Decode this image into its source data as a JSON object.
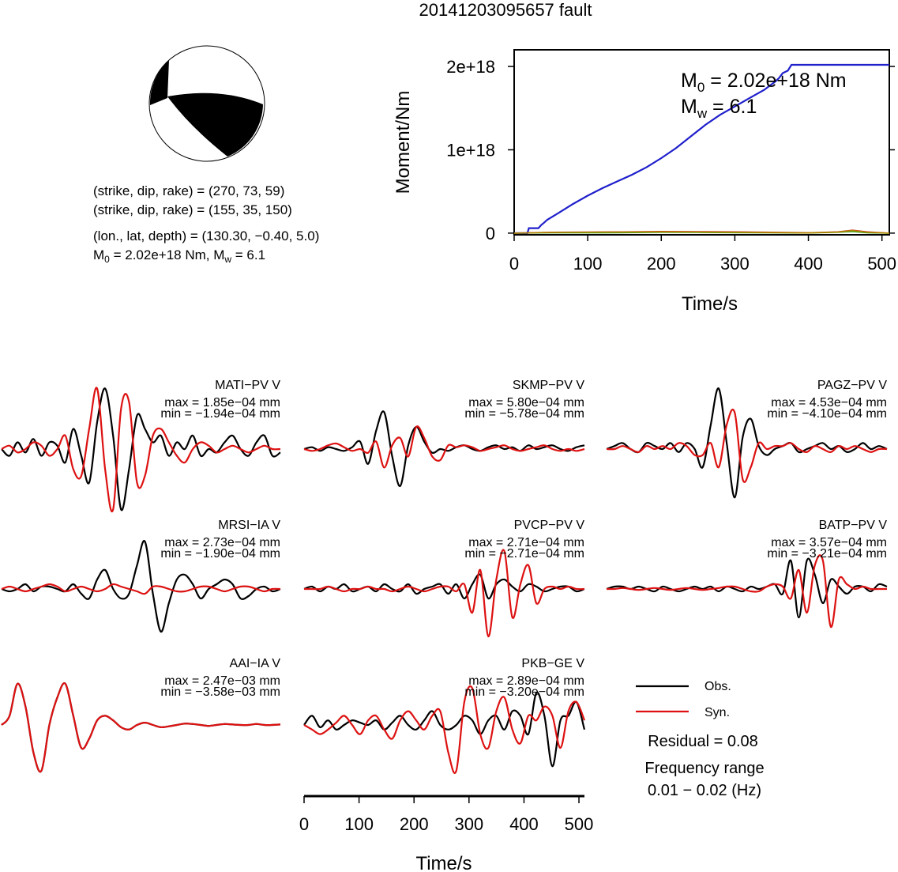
{
  "title": "20141203095657 fault",
  "mechanism": {
    "plane1": "(strike, dip, rake) = (270, 73, 59)",
    "plane2": "(strike, dip, rake) = (155, 35, 150)",
    "location": "(lon., lat, depth) = (130.30, −0.40, 5.0)",
    "moment_prefix": "M",
    "moment_sub": "0",
    "moment_value": " = 2.02e+18 Nm, M",
    "mw_sub": "w",
    "mw_value": " = 6.1"
  },
  "chart_data": [
    {
      "type": "line",
      "title": "",
      "xlabel": "Time/s",
      "ylabel": "Moment/Nm",
      "xlim": [
        0,
        510
      ],
      "ylim": [
        -2e+16,
        2.2e+18
      ],
      "xticks": [
        "0",
        "100",
        "200",
        "300",
        "400",
        "500"
      ],
      "yticks": [
        "0",
        "1e+18",
        "2e+18"
      ],
      "annotation": {
        "m0_prefix": "M",
        "m0_sub": "0",
        "m0_value": " = 2.02e+18 Nm",
        "mw_prefix": "M",
        "mw_sub": "w",
        "mw_value": " = 6.1"
      },
      "series": [
        {
          "color": "#1f1fcc",
          "x": [
            0,
            18,
            20,
            33,
            37,
            40,
            45,
            60,
            80,
            100,
            120,
            140,
            160,
            180,
            200,
            220,
            240,
            260,
            280,
            300,
            320,
            340,
            355,
            360,
            365,
            372,
            377,
            380,
            400,
            450,
            510
          ],
          "y": [
            0,
            0,
            6e+16,
            6e+16,
            1e+17,
            1.2e+17,
            1.6e+17,
            2.4e+17,
            3.5e+17,
            4.5e+17,
            5.4e+17,
            6.2e+17,
            7e+17,
            7.9e+17,
            9e+17,
            1.02e+18,
            1.16e+18,
            1.3e+18,
            1.42e+18,
            1.52e+18,
            1.62e+18,
            1.72e+18,
            1.82e+18,
            1.86e+18,
            1.92e+18,
            1.95e+18,
            2.02e+18,
            2.02e+18,
            2.02e+18,
            2.02e+18,
            2.02e+18
          ]
        },
        {
          "color": "#22a022",
          "x": [
            0,
            50,
            100,
            150,
            200,
            250,
            300,
            350,
            400,
            440,
            460,
            480,
            510
          ],
          "y": [
            0,
            5000000000000000.0,
            4000000000000000.0,
            6000000000000000.0,
            1e+16,
            8000000000000000.0,
            6000000000000000.0,
            4000000000000000.0,
            2000000000000000.0,
            1e+16,
            2e+16,
            5000000000000000.0,
            0
          ]
        },
        {
          "color": "#cc2222",
          "x": [
            0,
            50,
            100,
            150,
            200,
            250,
            300,
            350,
            400,
            440,
            460,
            480,
            510
          ],
          "y": [
            0,
            1e+16,
            1.2e+16,
            1.5e+16,
            2e+16,
            1.8e+16,
            1.5e+16,
            1e+16,
            5000000000000000.0,
            1.5e+16,
            3.5e+16,
            1.5e+16,
            0
          ]
        },
        {
          "color": "#b08a00",
          "x": [
            0,
            50,
            100,
            150,
            200,
            250,
            300,
            350,
            400,
            440,
            460,
            480,
            510
          ],
          "y": [
            0,
            8000000000000000.0,
            1e+16,
            1.2e+16,
            1.5e+16,
            1.3e+16,
            1e+16,
            7000000000000000.0,
            3000000000000000.0,
            1.2e+16,
            3e+16,
            1e+16,
            0
          ]
        }
      ]
    },
    {
      "type": "line",
      "title": "",
      "xlabel": "Time/s",
      "xlim": [
        0,
        510
      ],
      "xticks": [
        "0",
        "100",
        "200",
        "300",
        "400",
        "500"
      ],
      "legend": {
        "obs": "Obs.",
        "syn": "Syn."
      },
      "residual": "Residual = 0.08",
      "freq_label": "Frequency range",
      "freq_value": "0.01 − 0.02 (Hz)",
      "traces": [
        {
          "station": "MATI−PV V",
          "max": "max = 1.85e−04 mm",
          "min": "min = −1.94e−04 mm",
          "obs": [
            0,
            -0.1,
            0.1,
            -0.05,
            0.15,
            -0.1,
            0.1,
            0.05,
            -0.2,
            0.3,
            -0.1,
            -0.5,
            0.4,
            0.9,
            0.2,
            -0.9,
            -0.3,
            0.5,
            0.3,
            0.1,
            0.2,
            -0.1,
            0.1,
            0,
            0.2,
            -0.1,
            0,
            -0.05,
            0.1,
            0.2,
            0,
            -0.1,
            0.1,
            0.2,
            -0.1,
            -0.05
          ],
          "syn": [
            0,
            0.05,
            -0.05,
            0,
            0.1,
            0.05,
            -0.1,
            0,
            0.2,
            -0.3,
            -0.4,
            0.3,
            0.9,
            -0.3,
            -0.9,
            0.6,
            0.7,
            -0.5,
            -0.4,
            0.2,
            0.3,
            0.1,
            -0.1,
            -0.2,
            0,
            0.1,
            0.05,
            -0.05,
            0,
            0.05,
            0,
            -0.05,
            0,
            0.05,
            0,
            0
          ]
        },
        {
          "station": "SKMP−PV V",
          "max": "max = 5.80e−04 mm",
          "min": "min = −5.78e−04 mm",
          "obs": [
            0,
            0.05,
            -0.05,
            0.05,
            0,
            -0.05,
            0.05,
            0.2,
            -0.4,
            0.5,
            1.0,
            -0.2,
            -1.0,
            0.1,
            0.6,
            0.2,
            -0.1,
            0,
            -0.05,
            0.05,
            0.1,
            0,
            -0.05,
            0.05,
            0.1,
            0,
            0.05,
            -0.05,
            0.1,
            0,
            0.05,
            0.1,
            0,
            -0.05,
            0.05,
            0.1
          ],
          "syn": [
            0,
            -0.05,
            0,
            0.1,
            0.15,
            0.05,
            -0.05,
            0,
            -0.1,
            0.2,
            -0.5,
            0.1,
            0.3,
            -0.2,
            0.6,
            0.3,
            -0.2,
            -0.3,
            0.1,
            0.05,
            0.1,
            0.05,
            -0.05,
            0,
            0.05,
            0.1,
            0,
            -0.05,
            0,
            0.05,
            0.1,
            0,
            -0.05,
            0,
            -0.05,
            0
          ],
          "yscale": 0.55
        },
        {
          "station": "PAGZ−PV V",
          "max": "max = 4.53e−04 mm",
          "min": "min = −4.10e−04 mm",
          "obs": [
            0,
            0.05,
            0.1,
            0,
            -0.05,
            0.1,
            0.05,
            0,
            0.1,
            -0.05,
            0.1,
            0,
            -0.3,
            0.4,
            1.0,
            0.1,
            -0.8,
            0.2,
            0.5,
            0.05,
            -0.1,
            0,
            0.05,
            0.1,
            -0.05,
            0,
            0.05,
            0.1,
            0,
            0.05,
            -0.05,
            0,
            0.1,
            0,
            0.05,
            0
          ],
          "syn": [
            0,
            0,
            0.05,
            0,
            -0.05,
            0.05,
            0,
            0.05,
            0,
            0.1,
            0.05,
            -0.1,
            -0.1,
            0.1,
            -0.3,
            0.4,
            0.6,
            -0.5,
            -0.3,
            0.1,
            0,
            0.05,
            0.05,
            0.1,
            0,
            -0.05,
            0.05,
            0,
            -0.05,
            0.05,
            0,
            0.05,
            0,
            -0.05,
            0,
            0
          ],
          "yscale": 0.9
        },
        {
          "station": "MRSI−IA V",
          "max": "max = 2.73e−04 mm",
          "min": "min = −1.90e−04 mm",
          "obs": [
            0,
            -0.05,
            0,
            0.1,
            -0.05,
            0.05,
            0.05,
            0,
            -0.05,
            0.1,
            -0.1,
            -0.2,
            0.2,
            0.4,
            0,
            -0.2,
            -0.1,
            0.5,
            1.0,
            -0.1,
            -0.9,
            -0.3,
            0.2,
            0.3,
            0.1,
            -0.2,
            0,
            0.1,
            0.2,
            0.1,
            -0.2,
            -0.15,
            0,
            0.05,
            -0.05,
            0
          ],
          "syn": [
            0,
            0.05,
            0,
            -0.05,
            0,
            0.05,
            0.1,
            0.05,
            -0.05,
            0,
            0.05,
            0,
            -0.05,
            0,
            0.1,
            0.05,
            0,
            -0.05,
            -0.1,
            0.05,
            0.05,
            0,
            -0.05,
            -0.05,
            0,
            0.05,
            0.05,
            0,
            -0.05,
            0,
            0.05,
            0.05,
            0,
            -0.05,
            0,
            0
          ]
        },
        {
          "station": "PVCP−PV V",
          "max": "max = 2.71e−04 mm",
          "min": "min = −2.71e−04 mm",
          "obs": [
            0,
            0.05,
            -0.05,
            0.05,
            0,
            0.1,
            -0.05,
            0,
            0.05,
            -0.05,
            0.1,
            0,
            -0.05,
            0.1,
            -0.1,
            0,
            0.05,
            0.1,
            -0.1,
            0.1,
            -0.2,
            0.1,
            0.3,
            -0.2,
            0.1,
            0.2,
            0.05,
            -0.05,
            0.1,
            0.05,
            -0.05,
            0,
            0.05,
            0.05,
            -0.05,
            0
          ],
          "syn": [
            0,
            0,
            0,
            0.05,
            0,
            -0.05,
            0,
            0,
            0.05,
            0,
            0,
            -0.05,
            0,
            0.05,
            0,
            -0.05,
            0,
            0.05,
            0.05,
            -0.05,
            0.1,
            -0.5,
            0.4,
            -1.0,
            0.2,
            0.8,
            -0.6,
            0.1,
            0.5,
            -0.3,
            0,
            0.05,
            0,
            0.05,
            0,
            0
          ]
        },
        {
          "station": "BATP−PV V",
          "max": "max = 3.57e−04 mm",
          "min": "min = −3.21e−04 mm",
          "obs": [
            0,
            0.05,
            0.05,
            0,
            0.05,
            0,
            -0.05,
            0.05,
            0,
            -0.05,
            0,
            0.05,
            0,
            0.05,
            -0.05,
            0.05,
            0,
            -0.05,
            0.05,
            0,
            0.05,
            0.1,
            -0.1,
            0.6,
            -0.6,
            0.6,
            0.3,
            -0.3,
            0.2,
            0.05,
            -0.1,
            0.05,
            0.05,
            -0.05,
            0.1,
            0.05
          ],
          "syn": [
            0,
            0,
            0.02,
            0,
            -0.02,
            0,
            0.02,
            0,
            -0.02,
            0,
            0.02,
            0,
            -0.02,
            0,
            0.02,
            0.05,
            0.05,
            0,
            -0.05,
            -0.05,
            0.05,
            0.1,
            0.05,
            -0.2,
            0.4,
            -0.5,
            0.5,
            0.6,
            -0.8,
            0.2,
            0.1,
            0,
            0.05,
            0,
            0,
            0
          ]
        },
        {
          "station": "AAI−IA V",
          "max": "max = 2.47e−03 mm",
          "min": "min = −3.58e−03 mm",
          "obs": [
            0,
            0.2,
            0.9,
            0.4,
            -0.6,
            -1.0,
            0,
            0.6,
            0.9,
            0.2,
            -0.5,
            -0.3,
            0.1,
            0.2,
            0.1,
            -0.05,
            -0.1,
            0,
            0.05,
            0,
            -0.05,
            -0.03,
            0,
            0.03,
            0.02,
            0,
            -0.02,
            0,
            0.02,
            0.01,
            0,
            0,
            0.02,
            0,
            0,
            0.01
          ],
          "syn": [
            0,
            0.2,
            0.9,
            0.4,
            -0.6,
            -1.0,
            0,
            0.6,
            0.9,
            0.2,
            -0.5,
            -0.3,
            0.1,
            0.2,
            0.1,
            -0.05,
            -0.1,
            0,
            0.05,
            0,
            -0.05,
            -0.03,
            0,
            0.03,
            0.02,
            0,
            -0.02,
            0,
            0.02,
            0.01,
            0,
            0,
            0.02,
            0,
            0,
            0.01
          ]
        },
        {
          "station": "PKB−GE V",
          "max": "max = 2.89e−04 mm",
          "min": "min = −3.20e−04 mm",
          "obs": [
            0,
            0.2,
            -0.05,
            0.1,
            -0.1,
            0,
            0.1,
            0.05,
            0,
            0.1,
            -0.1,
            0.05,
            0.2,
            0,
            -0.1,
            0.1,
            0.3,
            0,
            -0.1,
            0,
            0.2,
            0.1,
            -0.2,
            0.1,
            0.2,
            -0.1,
            0.3,
            0.2,
            -0.2,
            0.7,
            0.2,
            -0.9,
            0.1,
            0.2,
            0.5,
            -0.1
          ],
          "syn": [
            0,
            -0.1,
            -0.2,
            -0.1,
            0.05,
            0.2,
            0,
            -0.2,
            0.1,
            0.2,
            -0.1,
            -0.3,
            0.1,
            0.3,
            0.1,
            -0.1,
            0.2,
            0.3,
            -0.6,
            -1.0,
            0.5,
            0.8,
            -0.2,
            -0.5,
            0.3,
            0.6,
            -0.1,
            -0.4,
            0.2,
            0.1,
            0.4,
            0.2,
            -0.5,
            0.3,
            0.5,
            0.1
          ]
        }
      ]
    }
  ]
}
